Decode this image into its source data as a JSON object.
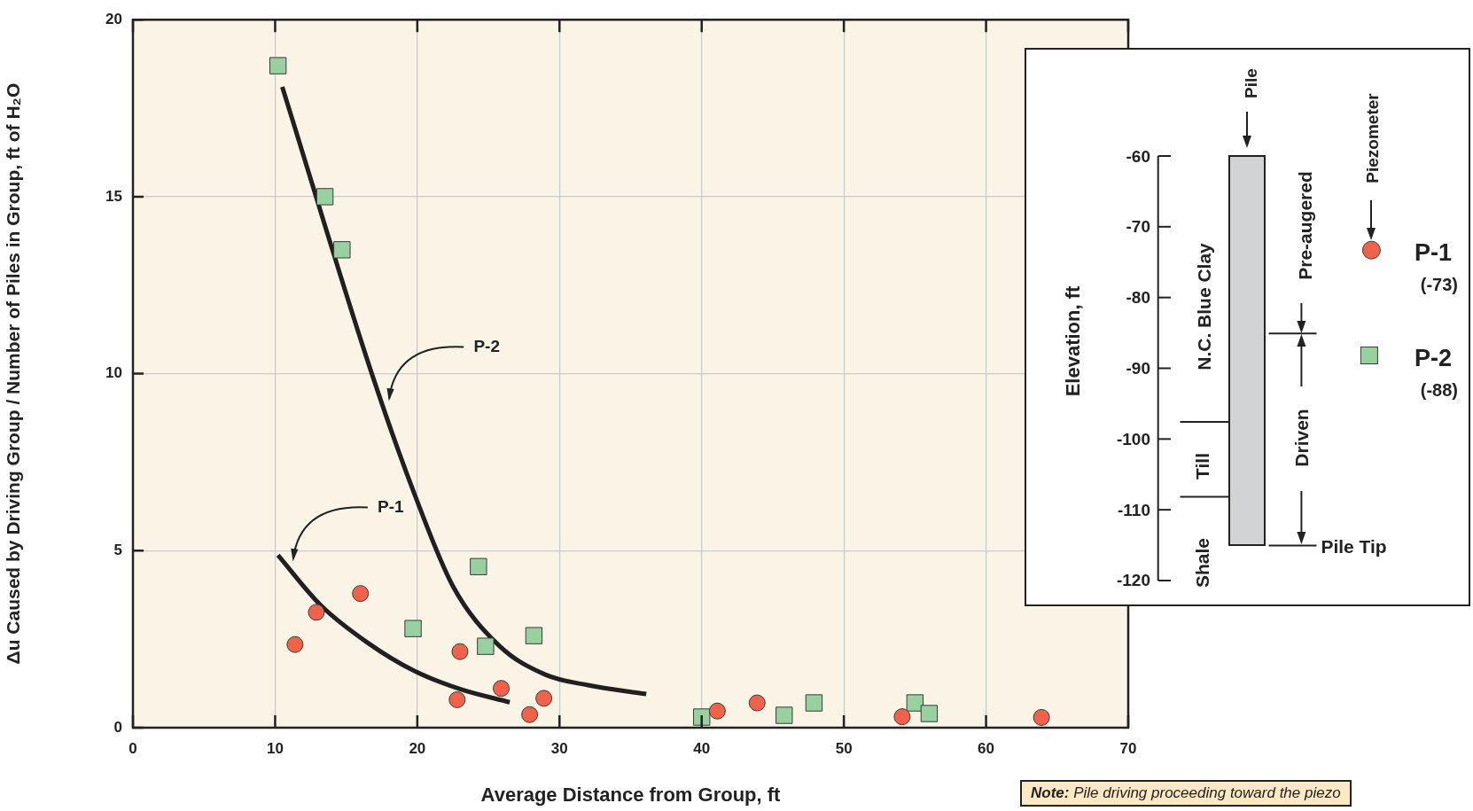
{
  "chart_data": {
    "type": "scatter",
    "xlabel": "Average Distance from Group, ft",
    "ylabel": "Δu Caused by Driving Group / Number of Piles in Group, ft of H₂O",
    "xlim": [
      0,
      70
    ],
    "xticks": [
      0,
      10,
      20,
      30,
      40,
      50,
      60,
      70
    ],
    "ylim": [
      0,
      20
    ],
    "yticks": [
      0,
      5,
      10,
      15,
      20
    ],
    "grid": true,
    "legend": "right",
    "series": [
      {
        "name": "P-1",
        "marker": "circle",
        "color": "#f0624a",
        "x": [
          11.4,
          12.9,
          16.0,
          23.0,
          22.8,
          25.9,
          27.9,
          28.9,
          41.1,
          43.9,
          54.1,
          63.9
        ],
        "values": [
          2.35,
          3.26,
          3.79,
          2.15,
          0.79,
          1.11,
          0.37,
          0.83,
          0.47,
          0.7,
          0.31,
          0.29
        ]
      },
      {
        "name": "P-2",
        "marker": "square",
        "color": "#99d0a0",
        "x": [
          10.2,
          13.5,
          14.7,
          19.7,
          24.3,
          24.8,
          28.2,
          40.0,
          45.8,
          47.9,
          55.0,
          56.0
        ],
        "values": [
          18.7,
          15.0,
          13.5,
          2.8,
          4.55,
          2.3,
          2.6,
          0.3,
          0.35,
          0.7,
          0.7,
          0.4
        ]
      },
      {
        "type": "line",
        "marker": "none",
        "color": "#231f20",
        "x": [
          10.2,
          13.2,
          16.5,
          19.8,
          23.1,
          26.5
        ],
        "values": [
          4.87,
          3.46,
          2.4,
          1.6,
          1.08,
          0.72
        ]
      },
      {
        "type": "line",
        "marker": "none",
        "color": "#231f20",
        "x": [
          10.5,
          16.8,
          19.8,
          22.5,
          25.8,
          29,
          32,
          36.1
        ],
        "values": [
          18.1,
          10.0,
          6.6,
          4.0,
          2.3,
          1.5,
          1.2,
          0.95
        ]
      }
    ],
    "annotations": [
      {
        "text": "P-1",
        "x": 11.15,
        "y": 4.67
      },
      {
        "text": "P-2",
        "x": 17.9,
        "y": 9.2
      },
      "Elevation, ft",
      "-60",
      "-70",
      "-80",
      "-90",
      "-100",
      "-110",
      "-120",
      "Pile",
      "Piezometer",
      "N.C.  Blue Clay",
      "Till",
      "Shale",
      "Pre-augered",
      "Driven",
      "Pile Tip",
      "(-73)",
      "(-88)",
      "Note: Pile driving proceeding toward the piezo"
    ]
  }
}
